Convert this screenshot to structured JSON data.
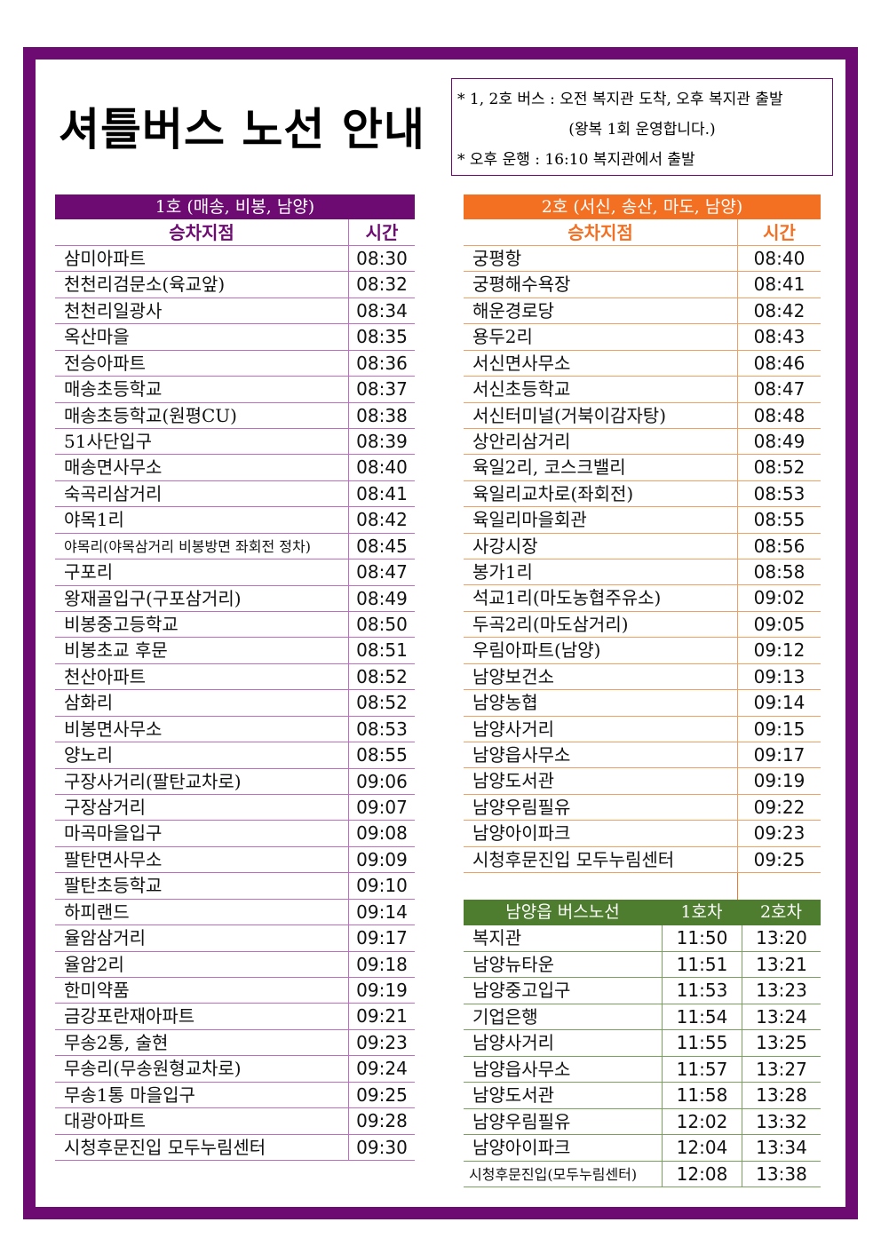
{
  "header": {
    "title": "셔틀버스 노선 안내",
    "notes": [
      "* 1, 2호 버스 : 오전 복지관 도착, 오후 복지관 출발",
      "(왕복 1회 운영합니다.)",
      "* 오후 운행 : 16:10 복지관에서 출발"
    ]
  },
  "route1": {
    "title": "1호 (매송, 비봉, 남양)",
    "columns": [
      "승차지점",
      "시간"
    ],
    "rows": [
      [
        "삼미아파트",
        "08:30"
      ],
      [
        "천천리검문소(육교앞)",
        "08:32"
      ],
      [
        "천천리일광사",
        "08:34"
      ],
      [
        "옥산마을",
        "08:35"
      ],
      [
        "전승아파트",
        "08:36"
      ],
      [
        "매송초등학교",
        "08:37"
      ],
      [
        "매송초등학교(원평CU)",
        "08:38"
      ],
      [
        "51사단입구",
        "08:39"
      ],
      [
        "매송면사무소",
        "08:40"
      ],
      [
        "숙곡리삼거리",
        "08:41"
      ],
      [
        "야목1리",
        "08:42"
      ],
      [
        "야목리(야목삼거리 비봉방면 좌회전 정차)",
        "08:45"
      ],
      [
        "구포리",
        "08:47"
      ],
      [
        "왕재골입구(구포삼거리)",
        "08:49"
      ],
      [
        "비봉중고등학교",
        "08:50"
      ],
      [
        "비봉초교 후문",
        "08:51"
      ],
      [
        "천산아파트",
        "08:52"
      ],
      [
        "삼화리",
        "08:52"
      ],
      [
        "비봉면사무소",
        "08:53"
      ],
      [
        "양노리",
        "08:55"
      ],
      [
        "구장사거리(팔탄교차로)",
        "09:06"
      ],
      [
        "구장삼거리",
        "09:07"
      ],
      [
        "마곡마을입구",
        "09:08"
      ],
      [
        "팔탄면사무소",
        "09:09"
      ],
      [
        "팔탄초등학교",
        "09:10"
      ],
      [
        "하피랜드",
        "09:14"
      ],
      [
        "율암삼거리",
        "09:17"
      ],
      [
        "율암2리",
        "09:18"
      ],
      [
        "한미약품",
        "09:19"
      ],
      [
        "금강포란재아파트",
        "09:21"
      ],
      [
        "무송2통, 술현",
        "09:23"
      ],
      [
        "무송리(무송원형교차로)",
        "09:24"
      ],
      [
        "무송1통 마을입구",
        "09:25"
      ],
      [
        "대광아파트",
        "09:28"
      ],
      [
        "시청후문진입 모두누림센터",
        "09:30"
      ]
    ]
  },
  "route2": {
    "title": "2호 (서신, 송산, 마도, 남양)",
    "columns": [
      "승차지점",
      "시간"
    ],
    "rows": [
      [
        "궁평항",
        "08:40"
      ],
      [
        "궁평해수욕장",
        "08:41"
      ],
      [
        "해운경로당",
        "08:42"
      ],
      [
        "용두2리",
        "08:43"
      ],
      [
        "서신면사무소",
        "08:46"
      ],
      [
        "서신초등학교",
        "08:47"
      ],
      [
        "서신터미널(거북이감자탕)",
        "08:48"
      ],
      [
        "상안리삼거리",
        "08:49"
      ],
      [
        "육일2리,  코스크밸리",
        "08:52"
      ],
      [
        "육일리교차로(좌회전)",
        "08:53"
      ],
      [
        "육일리마을회관",
        "08:55"
      ],
      [
        "사강시장",
        "08:56"
      ],
      [
        "봉가1리",
        "08:58"
      ],
      [
        "석교1리(마도농협주유소)",
        "09:02"
      ],
      [
        "두곡2리(마도삼거리)",
        "09:05"
      ],
      [
        "우림아파트(남양)",
        "09:12"
      ],
      [
        "남양보건소",
        "09:13"
      ],
      [
        "남양농협",
        "09:14"
      ],
      [
        "남양사거리",
        "09:15"
      ],
      [
        "남양읍사무소",
        "09:17"
      ],
      [
        "남양도서관",
        "09:19"
      ],
      [
        "남양우림필유",
        "09:22"
      ],
      [
        "남양아이파크",
        "09:23"
      ],
      [
        "시청후문진입 모두누림센터",
        "09:25"
      ]
    ]
  },
  "namyang": {
    "columns": [
      "남양읍 버스노선",
      "1호차",
      "2호차"
    ],
    "rows": [
      [
        "복지관",
        "11:50",
        "13:20"
      ],
      [
        "남양뉴타운",
        "11:51",
        "13:21"
      ],
      [
        "남양중고입구",
        "11:53",
        "13:23"
      ],
      [
        "기업은행",
        "11:54",
        "13:24"
      ],
      [
        "남양사거리",
        "11:55",
        "13:25"
      ],
      [
        "남양읍사무소",
        "11:57",
        "13:27"
      ],
      [
        "남양도서관",
        "11:58",
        "13:28"
      ],
      [
        "남양우림필유",
        "12:02",
        "13:32"
      ],
      [
        "남양아이파크",
        "12:04",
        "13:34"
      ],
      [
        "시청후문진입(모두누림센터)",
        "12:08",
        "13:38"
      ]
    ]
  }
}
